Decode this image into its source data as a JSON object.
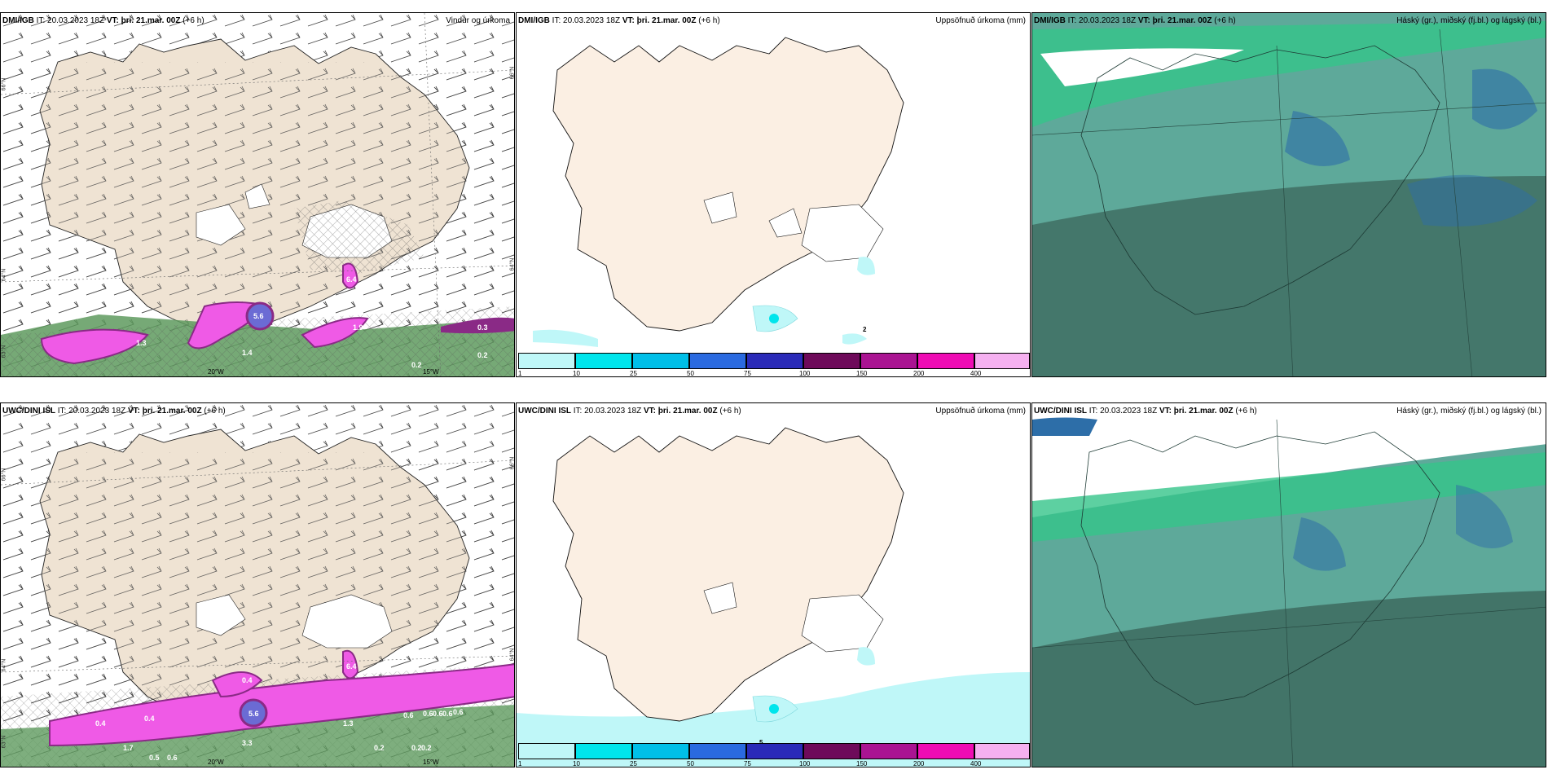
{
  "panels": {
    "p1": {
      "model": "DMI/IGB",
      "it_label": "IT:",
      "it": "20.03.2023 18Z",
      "vt_label": "VT:",
      "vt": "þri. 21.mar. 00Z",
      "lead": "(+6 h)",
      "title": "Vindur og úrkoma"
    },
    "p2": {
      "model": "DMI/IGB",
      "it_label": "IT:",
      "it": "20.03.2023 18Z",
      "vt_label": "VT:",
      "vt": "þri. 21.mar. 00Z",
      "lead": "(+6 h)",
      "title": "Uppsöfnuð úrkoma (mm)"
    },
    "p3": {
      "model": "DMI/IGB",
      "it_label": "IT:",
      "it": "20.03.2023 18Z",
      "vt_label": "VT:",
      "vt": "þri. 21.mar. 00Z",
      "lead": "(+6 h)",
      "title": "Háský (gr.), miðský (fj.bl.) og lágský (bl.)"
    },
    "p4": {
      "model": "UWC/DINI ISL",
      "it_label": "IT:",
      "it": "20.03.2023 18Z",
      "vt_label": "VT:",
      "vt": "þri. 21.mar. 00Z",
      "lead": "(+6 h)",
      "title": ""
    },
    "p5": {
      "model": "UWC/DINI ISL",
      "it_label": "IT:",
      "it": "20.03.2023 18Z",
      "vt_label": "VT:",
      "vt": "þri. 21.mar. 00Z",
      "lead": "(+6 h)",
      "title": "Uppsöfnuð úrkoma (mm)"
    },
    "p6": {
      "model": "UWC/DINI ISL",
      "it_label": "IT:",
      "it": "20.03.2023 18Z",
      "vt_label": "VT:",
      "vt": "þri. 21.mar. 00Z",
      "lead": "(+6 h)",
      "title": "Háský (gr.), miðský (fj.bl.) og lágský (bl.)"
    }
  },
  "grid_labels": {
    "lat66": "66°N",
    "lat64": "64°N",
    "lat63": "63°N",
    "lon20": "20°W",
    "lon15": "15°W"
  },
  "precip_values_top": [
    "1.3",
    "1.4",
    "5.6",
    "1.9",
    "0.3",
    "0.2",
    "0.2",
    "6.4"
  ],
  "precip_values_bottom": [
    "0.4",
    "1.7",
    "0.5",
    "0.6",
    "0.6",
    "0.4",
    "0.4",
    "3.3",
    "5.6",
    "1.3",
    "0.6",
    "0.6",
    "0.6",
    "0.6",
    "0.6",
    "0.2",
    "0.2",
    "0.2",
    "6.4"
  ],
  "accum_values": {
    "top": "2",
    "bottom": "5"
  },
  "colorbar": {
    "ticks": [
      "1",
      "10",
      "25",
      "50",
      "75",
      "100",
      "150",
      "200",
      "400"
    ],
    "colors": [
      "#bff7f8",
      "#00e5ec",
      "#00bfe8",
      "#2a6ae0",
      "#2a2ab8",
      "#6e0a5a",
      "#aa1492",
      "#ef0cb4",
      "#f5b0f0"
    ]
  },
  "colors": {
    "land": "#efe3d3",
    "land_light": "#fbefe3",
    "precip_pink": "#ef5ae6",
    "precip_purple": "#8a2a86",
    "precip_green": "#5e9a5e",
    "cloud_teal": "#5ea99a",
    "cloud_dark": "#3f6e63",
    "cloud_green": "#34c48a",
    "cloud_blue": "#2d6ea8"
  }
}
